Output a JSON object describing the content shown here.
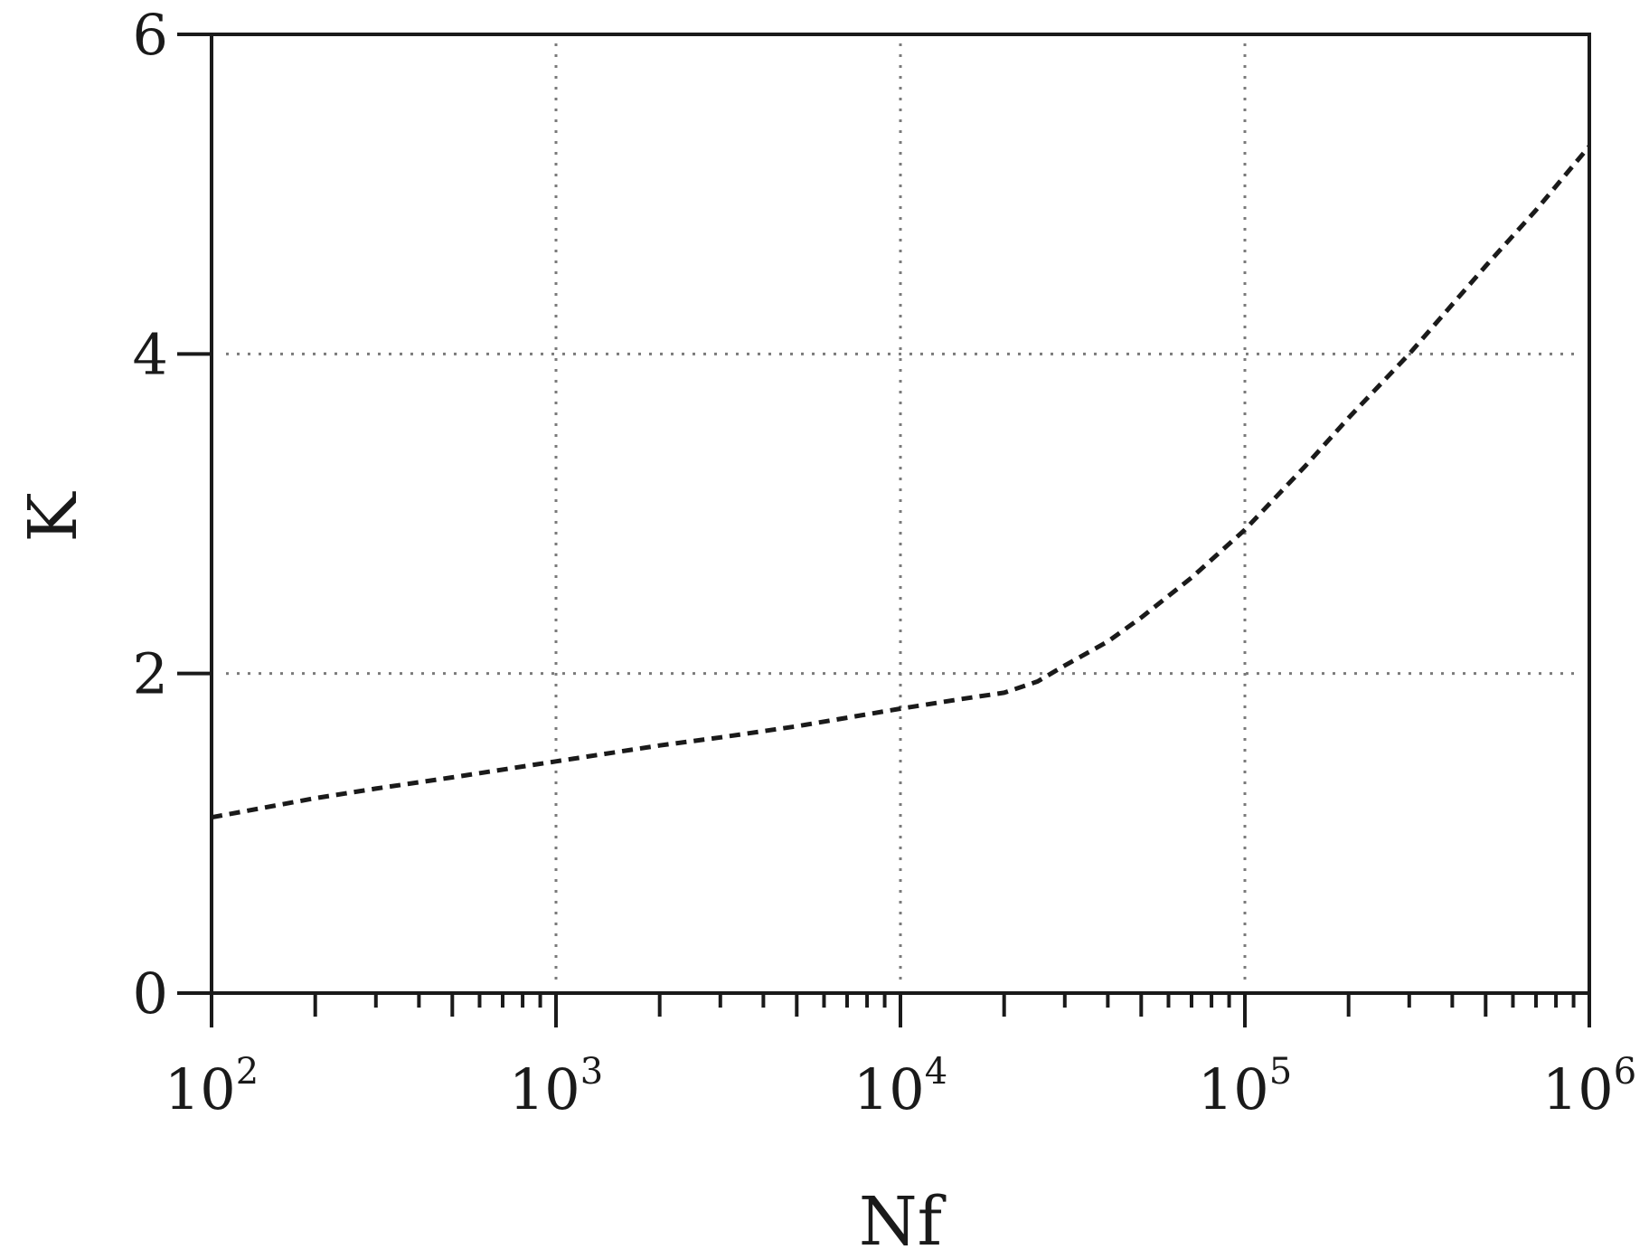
{
  "chart_data": {
    "type": "line",
    "title": "",
    "xlabel": "Nf",
    "ylabel": "K",
    "x_scale": "log",
    "xlim": [
      100,
      1000000
    ],
    "ylim": [
      0,
      6
    ],
    "grid": true,
    "x_ticks": [
      {
        "value": 100,
        "base": "10",
        "exp": "2"
      },
      {
        "value": 1000,
        "base": "10",
        "exp": "3"
      },
      {
        "value": 10000,
        "base": "10",
        "exp": "4"
      },
      {
        "value": 100000,
        "base": "10",
        "exp": "5"
      },
      {
        "value": 1000000,
        "base": "10",
        "exp": "6"
      }
    ],
    "y_ticks": [
      {
        "value": 0,
        "label": "0"
      },
      {
        "value": 2,
        "label": "2"
      },
      {
        "value": 4,
        "label": "4"
      },
      {
        "value": 6,
        "label": "6"
      }
    ],
    "series": [
      {
        "line_style": "dashed",
        "color": "#1a1a1a",
        "x": [
          100,
          200,
          300,
          500,
          1000,
          2000,
          3000,
          5000,
          10000,
          15000,
          20000,
          25000,
          30000,
          40000,
          50000,
          70000,
          100000,
          150000,
          200000,
          300000,
          500000,
          700000,
          1000000
        ],
        "y": [
          1.1,
          1.22,
          1.28,
          1.35,
          1.45,
          1.55,
          1.6,
          1.67,
          1.78,
          1.84,
          1.88,
          1.95,
          2.05,
          2.2,
          2.35,
          2.6,
          2.9,
          3.3,
          3.6,
          4.0,
          4.55,
          4.9,
          5.3
        ]
      }
    ]
  }
}
